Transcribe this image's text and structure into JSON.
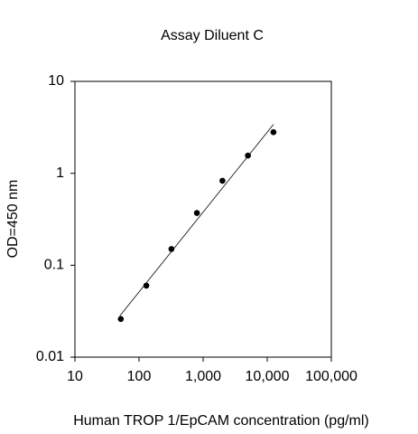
{
  "chart_data": {
    "type": "scatter",
    "title": "Assay Diluent C",
    "x_label": "Human TROP 1/EpCAM concentration (pg/ml)",
    "y_label": "OD=450 nm",
    "x": [
      52,
      130,
      320,
      800,
      2000,
      5000,
      12500
    ],
    "values": [
      0.026,
      0.06,
      0.15,
      0.37,
      0.83,
      1.56,
      2.8
    ],
    "color": "#000000",
    "fit_line": {
      "x": [
        50,
        12500
      ],
      "values": [
        0.028,
        3.4
      ]
    },
    "x_log": true,
    "y_log": true,
    "xlim": [
      10,
      100000
    ],
    "ylim": [
      0.01,
      10
    ],
    "xticks": [
      10,
      100,
      {
        "value": 1000,
        "label": "1,000"
      },
      {
        "value": 10000,
        "label": "10,000"
      },
      {
        "value": 100000,
        "label": "100,000"
      }
    ],
    "yticks": [
      0.01,
      0.1,
      1,
      10
    ]
  }
}
